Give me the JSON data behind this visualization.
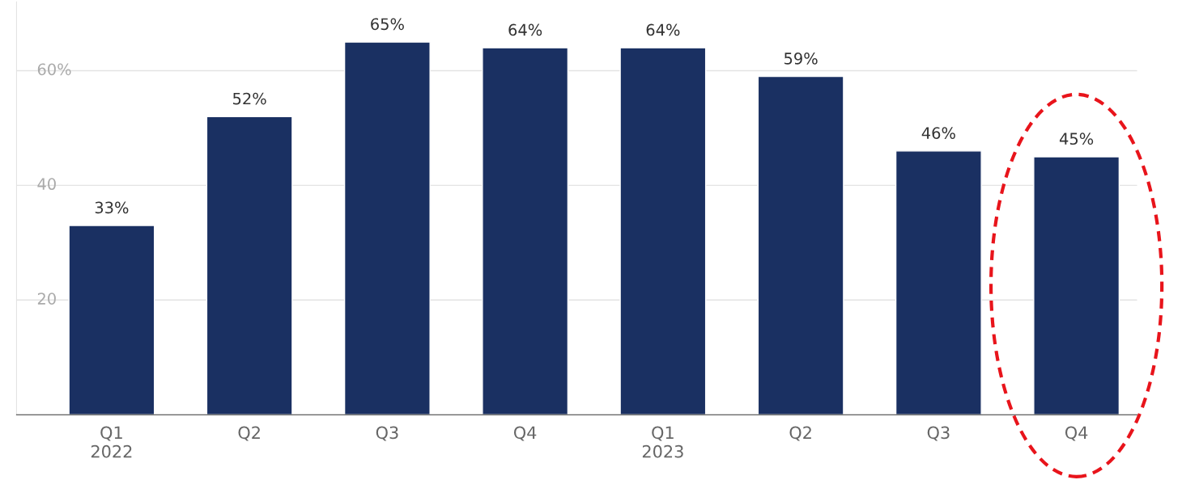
{
  "chart_data": {
    "type": "bar",
    "categories": [
      "Q1\n2022",
      "Q2",
      "Q3",
      "Q4",
      "Q1\n2023",
      "Q2",
      "Q3",
      "Q4"
    ],
    "values": [
      33,
      52,
      65,
      64,
      64,
      59,
      46,
      45
    ],
    "value_labels": [
      "33%",
      "52%",
      "65%",
      "64%",
      "64%",
      "59%",
      "46%",
      "45%"
    ],
    "color": "#1a3062",
    "ylim": [
      0,
      72
    ],
    "yticks": [
      20,
      40,
      {
        "value": 60,
        "label": "60%"
      }
    ],
    "grid": "y",
    "legend": false
  }
}
